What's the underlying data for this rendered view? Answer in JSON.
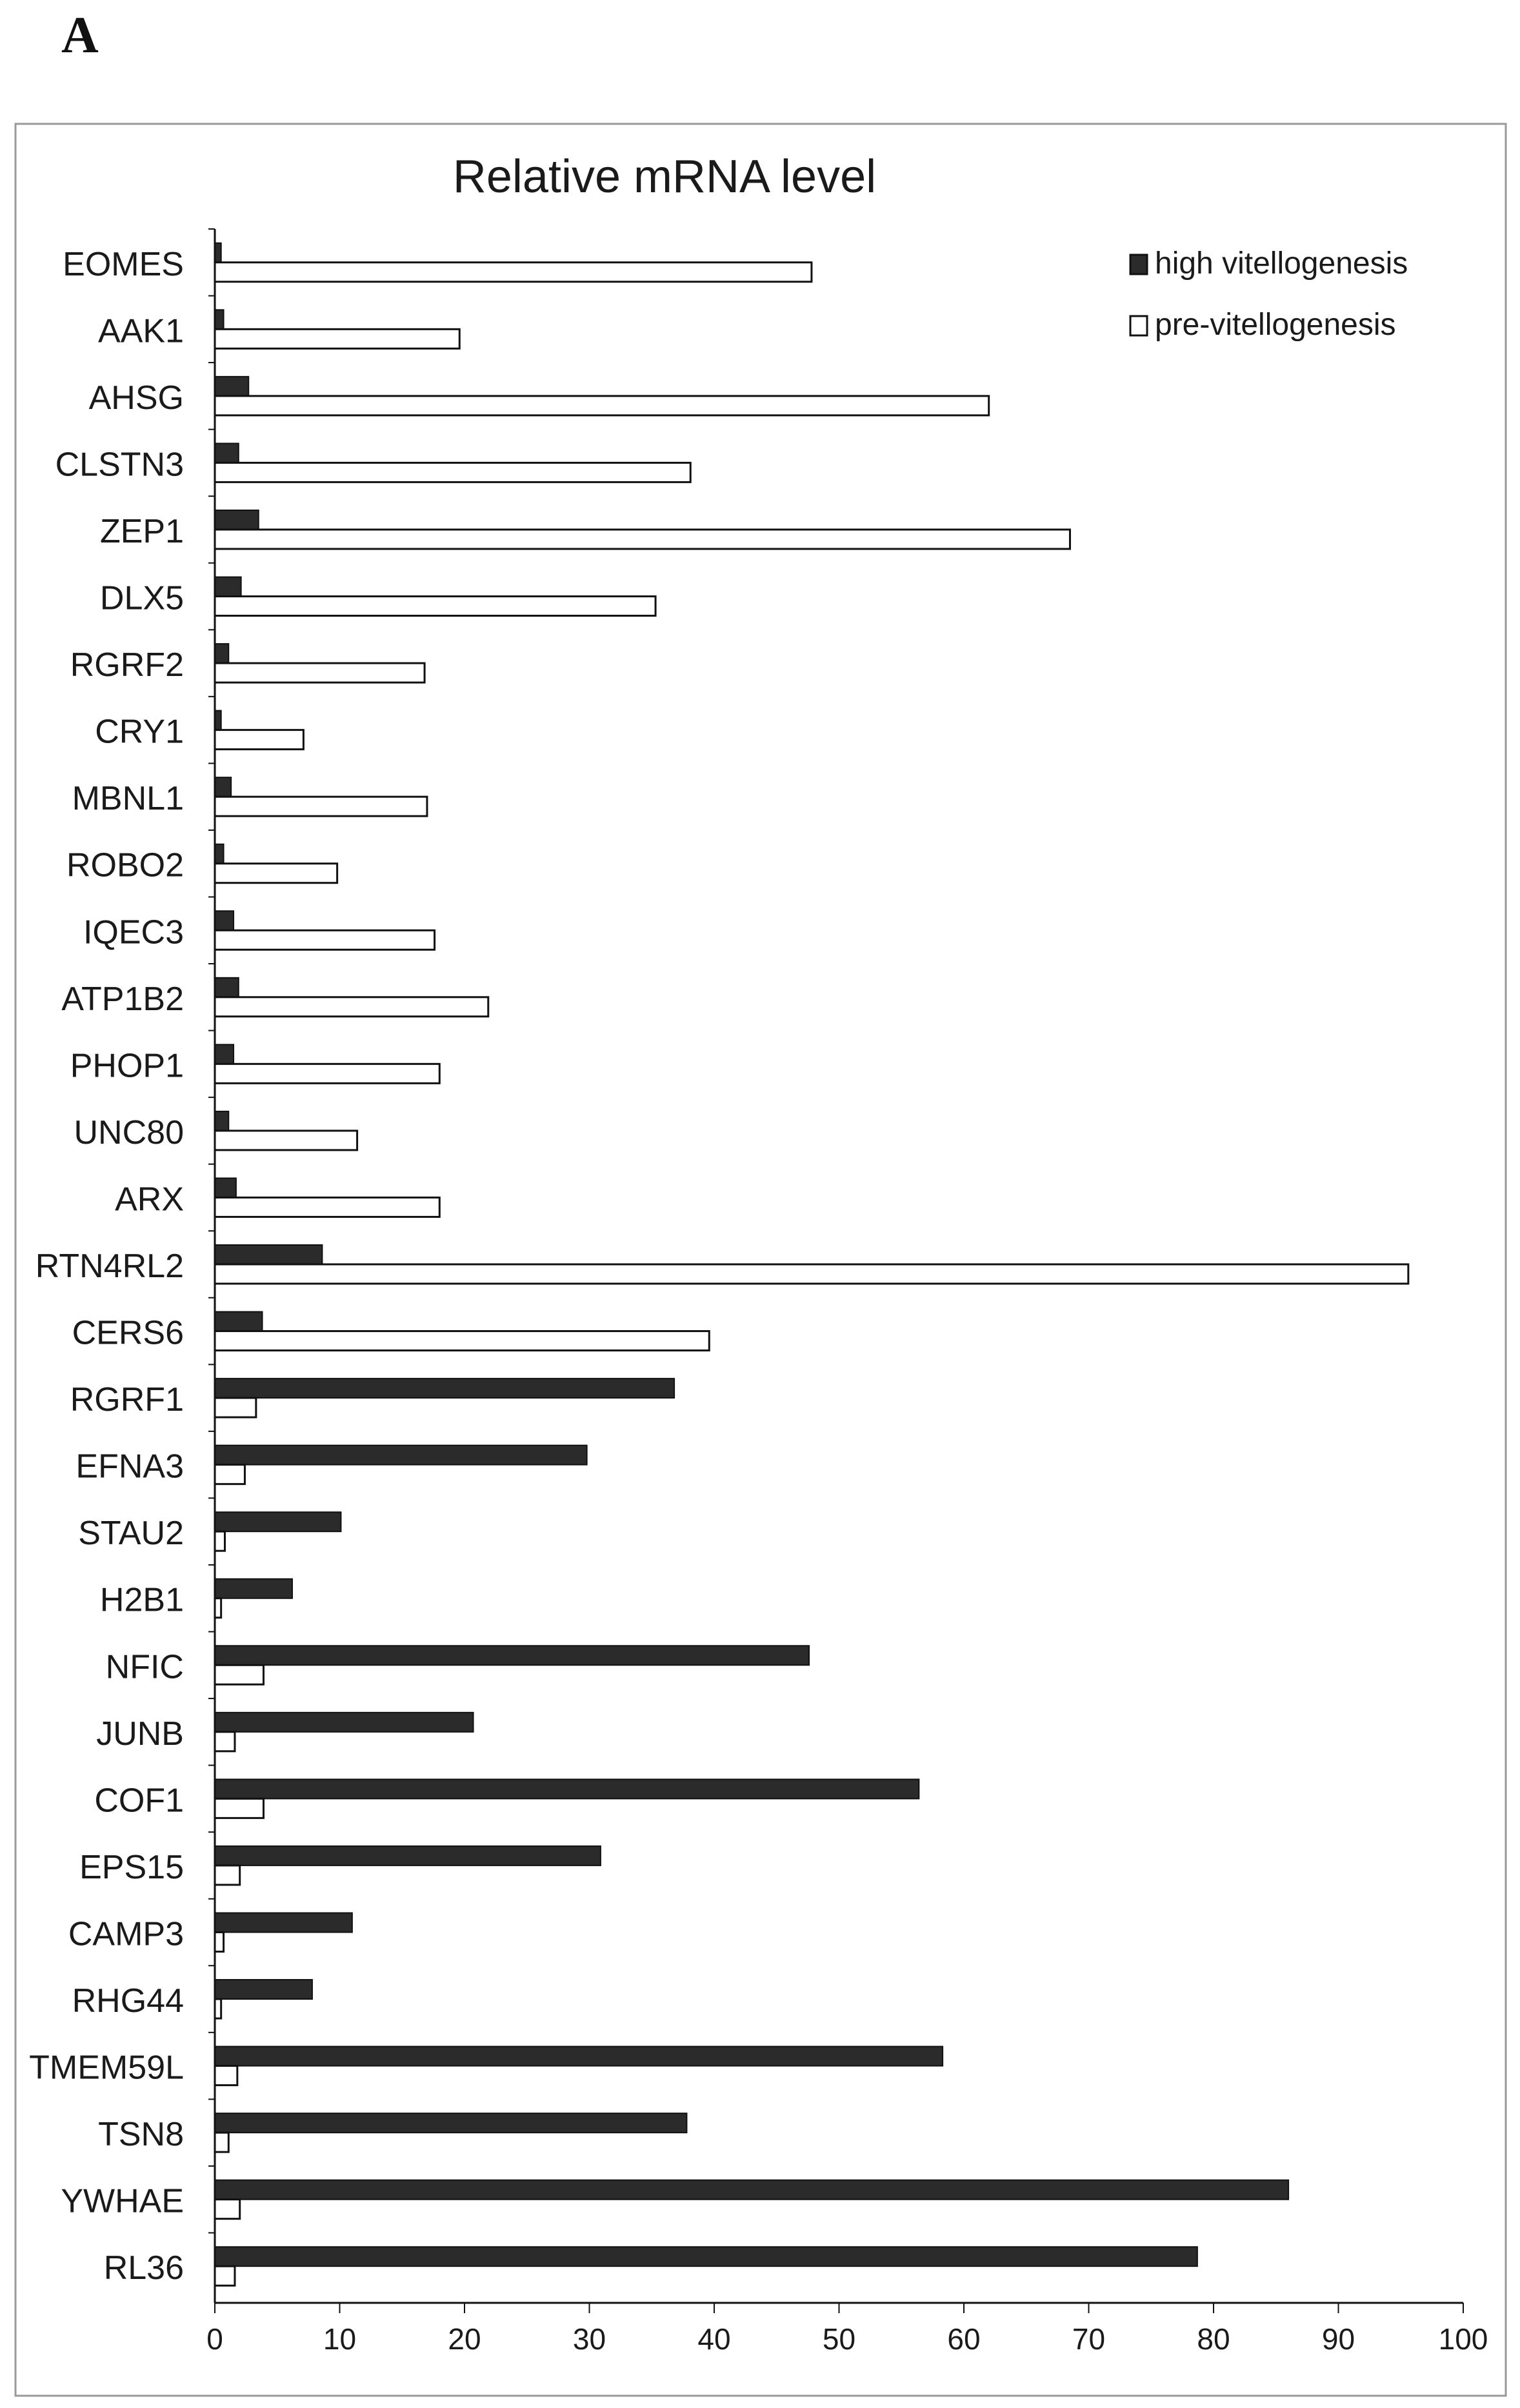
{
  "panel_label": "A",
  "chart_data": {
    "type": "bar",
    "orientation": "horizontal",
    "title": "Relative mRNA level",
    "xlabel": "",
    "ylabel": "",
    "xlim": [
      0,
      100
    ],
    "x_ticks": [
      0,
      10,
      20,
      30,
      40,
      50,
      60,
      70,
      80,
      90,
      100
    ],
    "grid": false,
    "legend_position": "top-right",
    "categories": [
      "EOMES",
      "AAK1",
      "AHSG",
      "CLSTN3",
      "ZEP1",
      "DLX5",
      "RGRF2",
      "CRY1",
      "MBNL1",
      "ROBO2",
      "IQEC3",
      "ATP1B2",
      "PHOP1",
      "UNC80",
      "ARX",
      "RTN4RL2",
      "CERS6",
      "RGRF1",
      "EFNA3",
      "STAU2",
      "H2B1",
      "NFIC",
      "JUNB",
      "COF1",
      "EPS15",
      "CAMP3",
      "RHG44",
      "TMEM59L",
      "TSN8",
      "YWHAE",
      "RL36"
    ],
    "series": [
      {
        "name": "high vitellogenesis",
        "color": "#2b2b2b",
        "values": [
          0.5,
          0.7,
          2.7,
          1.9,
          3.5,
          2.1,
          1.1,
          0.5,
          1.3,
          0.7,
          1.5,
          1.9,
          1.5,
          1.1,
          1.7,
          8.6,
          3.8,
          36.8,
          29.8,
          10.1,
          6.2,
          47.6,
          20.7,
          56.4,
          30.9,
          11.0,
          7.8,
          58.3,
          37.8,
          86.0,
          78.7
        ]
      },
      {
        "name": "pre-vitellogenesis",
        "color": "#ffffff",
        "values": [
          47.8,
          19.6,
          62.0,
          38.1,
          68.5,
          35.3,
          16.8,
          7.1,
          17.0,
          9.8,
          17.6,
          21.9,
          18.0,
          11.4,
          18.0,
          95.6,
          39.6,
          3.3,
          2.4,
          0.8,
          0.5,
          3.9,
          1.6,
          3.9,
          2.0,
          0.7,
          0.5,
          1.8,
          1.1,
          2.0,
          1.6
        ]
      }
    ]
  }
}
